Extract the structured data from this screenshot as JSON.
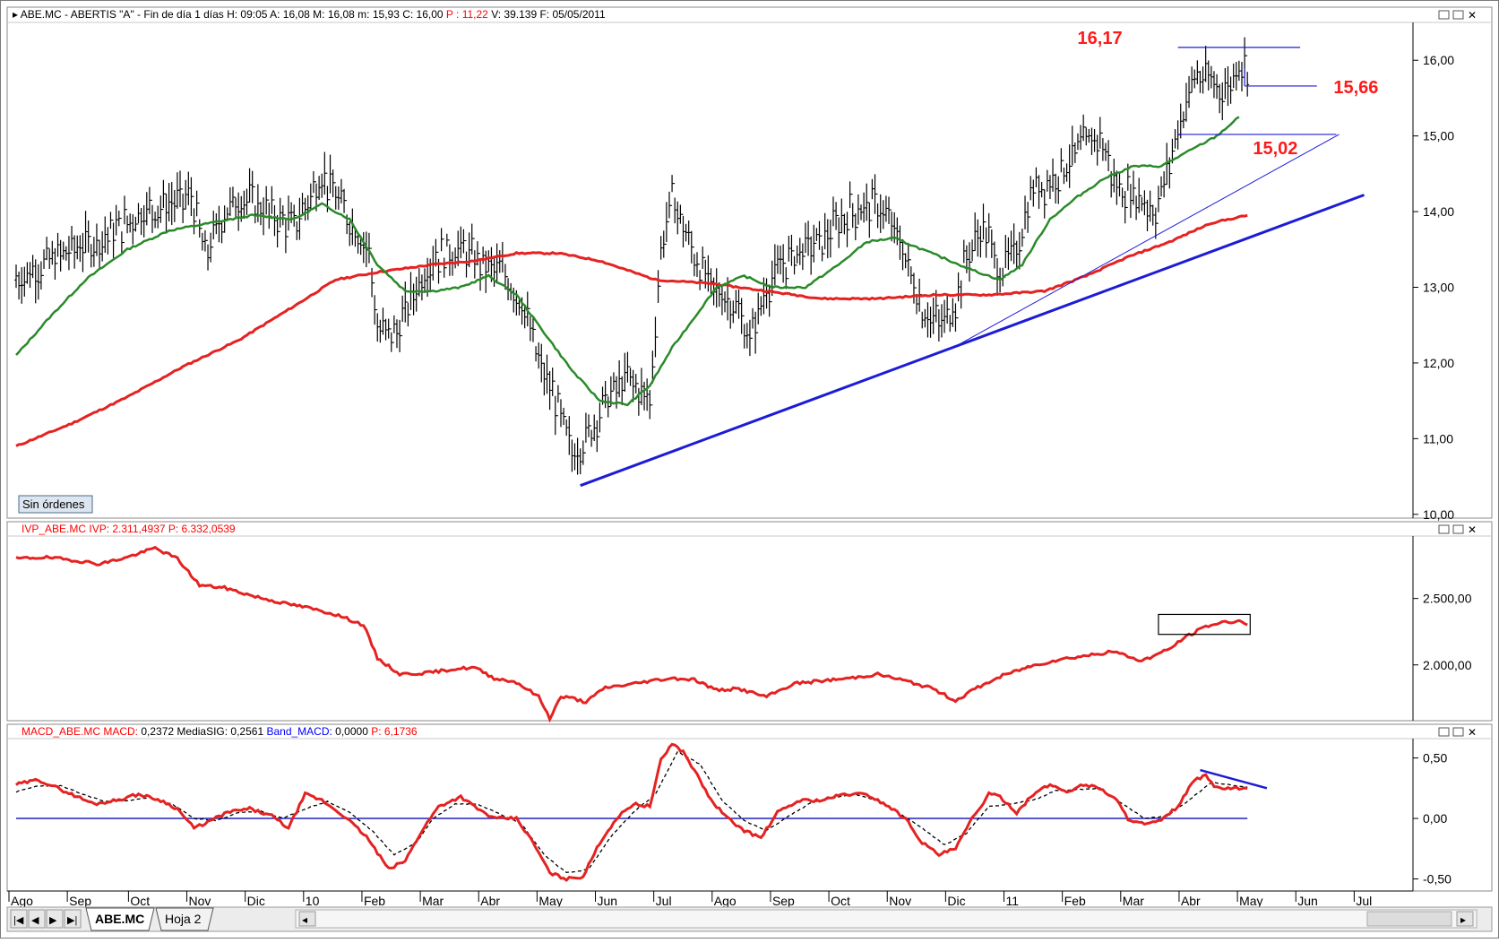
{
  "header": {
    "segments": [
      {
        "text": "ABE.MC - ABERTIS  \"A\" - Fin de día 1 días  H: 09:05  A: 16,08  M: 16,08  m: 15,93  C: 16,00  ",
        "color": "#000000"
      },
      {
        "text": "P : 11,22",
        "color": "#ff0000"
      },
      {
        "text": "  V: 39.139  F: 05/05/2011",
        "color": "#000000"
      }
    ]
  },
  "ivp_header": {
    "segments": [
      {
        "text": "IVP_ABE.MC  IVP: 2.311,4937  ",
        "color": "#ff0000"
      },
      {
        "text": "P: 6.332,0539",
        "color": "#ff0000"
      }
    ]
  },
  "macd_header": {
    "segments": [
      {
        "text": "MACD_ABE.MC  MACD: ",
        "color": "#ff0000"
      },
      {
        "text": "0,2372  MediaSIG: 0,2561  ",
        "color": "#000000"
      },
      {
        "text": "Band_MACD: ",
        "color": "#0000ff"
      },
      {
        "text": "0,0000  ",
        "color": "#000000"
      },
      {
        "text": "P: 6,1736",
        "color": "#ff0000"
      }
    ]
  },
  "status_button": "Sin órdenes",
  "tabs": [
    {
      "label": "ABE.MC",
      "active": true
    },
    {
      "label": "Hoja 2",
      "active": false
    }
  ],
  "nav_glyphs": [
    "|◀",
    "◀",
    "▶",
    "▶|"
  ],
  "colors": {
    "price": "#000000",
    "sma_short": "#2a8a2a",
    "sma_long": "#e52222",
    "trend": "#1c1cd6",
    "ivp": "#e52222",
    "macd": "#e52222",
    "signal": "#000000",
    "zero": "#2020c0",
    "annotation": "#ff1a1a"
  },
  "chart_data": [
    {
      "type": "line",
      "title": "ABE.MC - ABERTIS",
      "x_ticks": [
        "Ago",
        "Sep",
        "Oct",
        "Nov",
        "Dic",
        "10",
        "Feb",
        "Mar",
        "Abr",
        "May",
        "Jun",
        "Jul",
        "Ago",
        "Sep",
        "Oct",
        "Nov",
        "Dic",
        "11",
        "Feb",
        "Mar",
        "Abr",
        "May",
        "Jun",
        "Jul"
      ],
      "x_tick_index": [
        0,
        21,
        43,
        64,
        85,
        106,
        127,
        148,
        169,
        190,
        211,
        232,
        253,
        274,
        295,
        316,
        337,
        358,
        379,
        400,
        421,
        442,
        463,
        484
      ],
      "y_ticks": [
        "10,00",
        "11,00",
        "12,00",
        "13,00",
        "14,00",
        "15,00",
        "16,00"
      ],
      "ylim": [
        9.95,
        16.5
      ],
      "price_anchors": [
        [
          0,
          13.1
        ],
        [
          10,
          13.3
        ],
        [
          20,
          13.5
        ],
        [
          28,
          13.6
        ],
        [
          38,
          13.8
        ],
        [
          45,
          14.0
        ],
        [
          55,
          14.1
        ],
        [
          63,
          14.2
        ],
        [
          68,
          13.4
        ],
        [
          75,
          14.0
        ],
        [
          82,
          14.2
        ],
        [
          90,
          14.0
        ],
        [
          100,
          13.8
        ],
        [
          110,
          14.5
        ],
        [
          118,
          14.0
        ],
        [
          127,
          13.5
        ],
        [
          130,
          12.4
        ],
        [
          137,
          12.4
        ],
        [
          144,
          13.0
        ],
        [
          150,
          13.4
        ],
        [
          160,
          13.5
        ],
        [
          168,
          13.3
        ],
        [
          175,
          13.2
        ],
        [
          182,
          12.8
        ],
        [
          188,
          12.0
        ],
        [
          195,
          11.4
        ],
        [
          200,
          10.8
        ],
        [
          205,
          11.0
        ],
        [
          212,
          11.5
        ],
        [
          220,
          11.8
        ],
        [
          228,
          11.5
        ],
        [
          232,
          13.5
        ],
        [
          236,
          14.2
        ],
        [
          244,
          13.4
        ],
        [
          250,
          13.0
        ],
        [
          258,
          12.8
        ],
        [
          264,
          12.3
        ],
        [
          270,
          13.0
        ],
        [
          276,
          13.3
        ],
        [
          282,
          13.5
        ],
        [
          290,
          13.6
        ],
        [
          300,
          14.0
        ],
        [
          310,
          14.1
        ],
        [
          318,
          13.6
        ],
        [
          326,
          12.7
        ],
        [
          333,
          12.5
        ],
        [
          338,
          12.8
        ],
        [
          342,
          13.4
        ],
        [
          348,
          13.8
        ],
        [
          354,
          13.2
        ],
        [
          360,
          13.5
        ],
        [
          366,
          14.3
        ],
        [
          372,
          14.4
        ],
        [
          382,
          14.8
        ],
        [
          390,
          15.0
        ],
        [
          396,
          14.3
        ],
        [
          404,
          14.2
        ],
        [
          410,
          14.0
        ],
        [
          414,
          14.5
        ],
        [
          418,
          15.1
        ],
        [
          424,
          15.8
        ],
        [
          430,
          15.7
        ],
        [
          436,
          15.6
        ],
        [
          440,
          16.0
        ],
        [
          443,
          15.9
        ]
      ],
      "sma_short_anchors": [
        [
          0,
          12.1
        ],
        [
          12,
          12.6
        ],
        [
          25,
          13.1
        ],
        [
          40,
          13.5
        ],
        [
          55,
          13.75
        ],
        [
          70,
          13.85
        ],
        [
          85,
          13.95
        ],
        [
          100,
          13.9
        ],
        [
          110,
          14.1
        ],
        [
          120,
          13.9
        ],
        [
          130,
          13.3
        ],
        [
          140,
          12.95
        ],
        [
          150,
          12.95
        ],
        [
          160,
          13.0
        ],
        [
          170,
          13.15
        ],
        [
          180,
          12.9
        ],
        [
          190,
          12.4
        ],
        [
          200,
          11.9
        ],
        [
          210,
          11.5
        ],
        [
          220,
          11.45
        ],
        [
          228,
          11.7
        ],
        [
          236,
          12.2
        ],
        [
          244,
          12.6
        ],
        [
          252,
          13.0
        ],
        [
          262,
          13.15
        ],
        [
          272,
          13.0
        ],
        [
          284,
          13.0
        ],
        [
          296,
          13.3
        ],
        [
          306,
          13.6
        ],
        [
          316,
          13.65
        ],
        [
          326,
          13.5
        ],
        [
          336,
          13.35
        ],
        [
          346,
          13.2
        ],
        [
          354,
          13.1
        ],
        [
          362,
          13.3
        ],
        [
          372,
          13.9
        ],
        [
          382,
          14.2
        ],
        [
          392,
          14.45
        ],
        [
          402,
          14.6
        ],
        [
          412,
          14.6
        ],
        [
          422,
          14.8
        ],
        [
          432,
          15.0
        ],
        [
          440,
          15.25
        ]
      ],
      "sma_long_anchors": [
        [
          0,
          10.9
        ],
        [
          20,
          11.2
        ],
        [
          40,
          11.55
        ],
        [
          60,
          11.95
        ],
        [
          80,
          12.3
        ],
        [
          100,
          12.75
        ],
        [
          115,
          13.1
        ],
        [
          130,
          13.2
        ],
        [
          150,
          13.3
        ],
        [
          165,
          13.35
        ],
        [
          180,
          13.45
        ],
        [
          195,
          13.45
        ],
        [
          210,
          13.35
        ],
        [
          230,
          13.1
        ],
        [
          250,
          13.05
        ],
        [
          270,
          12.95
        ],
        [
          290,
          12.85
        ],
        [
          310,
          12.85
        ],
        [
          330,
          12.9
        ],
        [
          350,
          12.9
        ],
        [
          370,
          12.95
        ],
        [
          385,
          13.15
        ],
        [
          400,
          13.4
        ],
        [
          415,
          13.6
        ],
        [
          430,
          13.85
        ],
        [
          443,
          13.95
        ]
      ],
      "trendlines": [
        {
          "from": [
            203,
            10.38
          ],
          "to": [
            485,
            14.22
          ],
          "width": 3
        },
        {
          "from": [
            338,
            12.22
          ],
          "to": [
            476,
            15.02
          ],
          "width": 1
        }
      ],
      "levels": [
        {
          "label": "16,17",
          "value": 16.17
        },
        {
          "label": "15,66",
          "value": 15.66
        },
        {
          "label": "15,02",
          "value": 15.02
        }
      ]
    },
    {
      "type": "line",
      "title": "IVP_ABE.MC",
      "y_ticks": [
        "2.000,00",
        "2.500,00"
      ],
      "ylim": [
        1580,
        2970
      ],
      "ivp_anchors": [
        [
          0,
          2800
        ],
        [
          10,
          2810
        ],
        [
          20,
          2790
        ],
        [
          30,
          2760
        ],
        [
          40,
          2810
        ],
        [
          50,
          2880
        ],
        [
          58,
          2800
        ],
        [
          66,
          2600
        ],
        [
          75,
          2580
        ],
        [
          85,
          2520
        ],
        [
          95,
          2470
        ],
        [
          105,
          2430
        ],
        [
          115,
          2380
        ],
        [
          125,
          2300
        ],
        [
          130,
          2050
        ],
        [
          138,
          1930
        ],
        [
          148,
          1940
        ],
        [
          158,
          1970
        ],
        [
          165,
          1980
        ],
        [
          172,
          1900
        ],
        [
          180,
          1870
        ],
        [
          188,
          1760
        ],
        [
          192,
          1600
        ],
        [
          196,
          1760
        ],
        [
          200,
          1750
        ],
        [
          205,
          1720
        ],
        [
          212,
          1830
        ],
        [
          220,
          1850
        ],
        [
          228,
          1880
        ],
        [
          236,
          1900
        ],
        [
          244,
          1890
        ],
        [
          252,
          1810
        ],
        [
          260,
          1820
        ],
        [
          270,
          1760
        ],
        [
          280,
          1860
        ],
        [
          290,
          1880
        ],
        [
          300,
          1900
        ],
        [
          310,
          1930
        ],
        [
          320,
          1880
        ],
        [
          330,
          1820
        ],
        [
          338,
          1730
        ],
        [
          345,
          1820
        ],
        [
          355,
          1920
        ],
        [
          365,
          1990
        ],
        [
          375,
          2040
        ],
        [
          385,
          2070
        ],
        [
          395,
          2100
        ],
        [
          405,
          2030
        ],
        [
          415,
          2120
        ],
        [
          420,
          2200
        ],
        [
          428,
          2290
        ],
        [
          434,
          2320
        ],
        [
          440,
          2330
        ],
        [
          443,
          2310
        ]
      ]
    },
    {
      "type": "line",
      "title": "MACD_ABE.MC",
      "y_ticks": [
        "0,50",
        "0,00",
        "-0,50"
      ],
      "ylim": [
        -0.6,
        0.66
      ],
      "macd_anchors": [
        [
          0,
          0.28
        ],
        [
          8,
          0.32
        ],
        [
          14,
          0.26
        ],
        [
          22,
          0.18
        ],
        [
          28,
          0.12
        ],
        [
          36,
          0.15
        ],
        [
          44,
          0.2
        ],
        [
          52,
          0.15
        ],
        [
          58,
          0.08
        ],
        [
          64,
          -0.08
        ],
        [
          70,
          -0.02
        ],
        [
          76,
          0.05
        ],
        [
          84,
          0.08
        ],
        [
          92,
          0.02
        ],
        [
          98,
          -0.08
        ],
        [
          104,
          0.2
        ],
        [
          110,
          0.15
        ],
        [
          118,
          0.02
        ],
        [
          126,
          -0.15
        ],
        [
          134,
          -0.42
        ],
        [
          140,
          -0.35
        ],
        [
          146,
          -0.1
        ],
        [
          152,
          0.1
        ],
        [
          160,
          0.18
        ],
        [
          166,
          0.08
        ],
        [
          172,
          0.0
        ],
        [
          180,
          0.0
        ],
        [
          186,
          -0.2
        ],
        [
          192,
          -0.45
        ],
        [
          198,
          -0.5
        ],
        [
          204,
          -0.48
        ],
        [
          210,
          -0.2
        ],
        [
          216,
          0.0
        ],
        [
          222,
          0.12
        ],
        [
          228,
          0.1
        ],
        [
          232,
          0.48
        ],
        [
          236,
          0.62
        ],
        [
          240,
          0.55
        ],
        [
          244,
          0.4
        ],
        [
          250,
          0.15
        ],
        [
          256,
          0.0
        ],
        [
          262,
          -0.1
        ],
        [
          268,
          -0.16
        ],
        [
          274,
          0.05
        ],
        [
          282,
          0.15
        ],
        [
          290,
          0.15
        ],
        [
          298,
          0.2
        ],
        [
          306,
          0.2
        ],
        [
          314,
          0.1
        ],
        [
          320,
          0.0
        ],
        [
          326,
          -0.2
        ],
        [
          332,
          -0.3
        ],
        [
          338,
          -0.25
        ],
        [
          344,
          0.0
        ],
        [
          350,
          0.2
        ],
        [
          354,
          0.18
        ],
        [
          360,
          0.05
        ],
        [
          366,
          0.2
        ],
        [
          372,
          0.28
        ],
        [
          378,
          0.22
        ],
        [
          384,
          0.28
        ],
        [
          390,
          0.25
        ],
        [
          396,
          0.15
        ],
        [
          400,
          0.0
        ],
        [
          406,
          -0.05
        ],
        [
          412,
          -0.02
        ],
        [
          418,
          0.1
        ],
        [
          424,
          0.32
        ],
        [
          428,
          0.35
        ],
        [
          432,
          0.25
        ],
        [
          438,
          0.25
        ],
        [
          443,
          0.24
        ]
      ],
      "signal_anchors": [
        [
          0,
          0.22
        ],
        [
          8,
          0.27
        ],
        [
          16,
          0.27
        ],
        [
          24,
          0.2
        ],
        [
          32,
          0.14
        ],
        [
          40,
          0.15
        ],
        [
          48,
          0.17
        ],
        [
          56,
          0.12
        ],
        [
          64,
          0.0
        ],
        [
          72,
          -0.02
        ],
        [
          80,
          0.05
        ],
        [
          88,
          0.06
        ],
        [
          96,
          0.0
        ],
        [
          104,
          0.08
        ],
        [
          112,
          0.14
        ],
        [
          120,
          0.05
        ],
        [
          128,
          -0.1
        ],
        [
          136,
          -0.3
        ],
        [
          144,
          -0.2
        ],
        [
          150,
          0.0
        ],
        [
          158,
          0.12
        ],
        [
          166,
          0.12
        ],
        [
          174,
          0.04
        ],
        [
          182,
          -0.05
        ],
        [
          190,
          -0.3
        ],
        [
          198,
          -0.45
        ],
        [
          206,
          -0.42
        ],
        [
          214,
          -0.15
        ],
        [
          222,
          0.05
        ],
        [
          230,
          0.2
        ],
        [
          238,
          0.55
        ],
        [
          246,
          0.45
        ],
        [
          254,
          0.15
        ],
        [
          262,
          -0.02
        ],
        [
          270,
          -0.1
        ],
        [
          278,
          0.02
        ],
        [
          286,
          0.13
        ],
        [
          294,
          0.17
        ],
        [
          302,
          0.2
        ],
        [
          310,
          0.15
        ],
        [
          318,
          0.04
        ],
        [
          326,
          -0.08
        ],
        [
          334,
          -0.22
        ],
        [
          342,
          -0.12
        ],
        [
          350,
          0.1
        ],
        [
          358,
          0.12
        ],
        [
          366,
          0.15
        ],
        [
          374,
          0.23
        ],
        [
          382,
          0.24
        ],
        [
          390,
          0.25
        ],
        [
          398,
          0.12
        ],
        [
          406,
          0.0
        ],
        [
          414,
          0.02
        ],
        [
          422,
          0.15
        ],
        [
          430,
          0.3
        ],
        [
          436,
          0.28
        ],
        [
          443,
          0.26
        ]
      ],
      "divergence_line": {
        "from": [
          426,
          0.4
        ],
        "to": [
          450,
          0.25
        ]
      }
    }
  ]
}
